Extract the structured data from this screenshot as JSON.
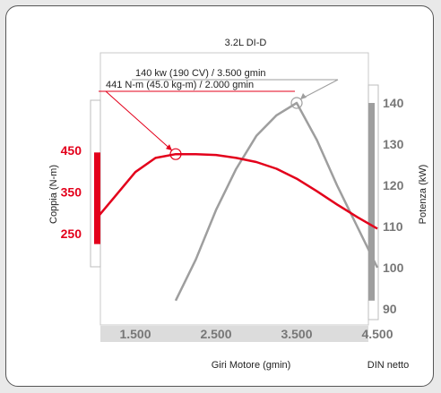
{
  "colors": {
    "torque": "#e3001b",
    "power": "#9e9e9e",
    "axis_text": "#777777",
    "text": "#222222"
  },
  "chart_data": {
    "type": "line",
    "title": "3.2L DI-D",
    "xlabel": "Giri Motore (gmin)",
    "xlabel_right": "DIN netto",
    "xlim": [
      1000,
      5000
    ],
    "x_ticks": [
      1500,
      2500,
      3500,
      4500
    ],
    "x_tick_labels": [
      "1.500",
      "2.500",
      "3.500",
      "4.500"
    ],
    "y_left": {
      "label": "Coppia (N-m)",
      "ticks": [
        250,
        350,
        450
      ],
      "tick_labels": [
        "250",
        "350",
        "450"
      ],
      "range_bar": [
        225,
        445
      ]
    },
    "y_right": {
      "label": "Potenza (kW)",
      "ticks": [
        90,
        100,
        110,
        120,
        130,
        140
      ],
      "tick_labels": [
        "90",
        "100",
        "110",
        "120",
        "130",
        "140"
      ],
      "range_bar": [
        92,
        140
      ]
    },
    "series": [
      {
        "name": "",
        "axis": "left",
        "points": [
          [
            1000,
            282
          ],
          [
            1250,
            340
          ],
          [
            1500,
            398
          ],
          [
            1750,
            432
          ],
          [
            2000,
            441
          ],
          [
            2250,
            441
          ],
          [
            2500,
            439
          ],
          [
            2750,
            432
          ],
          [
            3000,
            422
          ],
          [
            3250,
            406
          ],
          [
            3500,
            382
          ],
          [
            3750,
            352
          ],
          [
            4000,
            320
          ],
          [
            4250,
            290
          ],
          [
            4500,
            262
          ]
        ]
      },
      {
        "name": "",
        "axis": "right",
        "points": [
          [
            2000,
            92
          ],
          [
            2250,
            102
          ],
          [
            2500,
            114
          ],
          [
            2750,
            124
          ],
          [
            3000,
            132
          ],
          [
            3250,
            137
          ],
          [
            3500,
            140
          ],
          [
            3750,
            131
          ],
          [
            4000,
            120
          ],
          [
            4250,
            110
          ],
          [
            4500,
            100
          ]
        ]
      }
    ],
    "annotations": [
      {
        "text": "441 N-m (45.0 kg-m) / 2.000 gmin",
        "x": 2000,
        "y": 441,
        "axis": "left"
      },
      {
        "text": "140 kw (190 CV) / 3.500 gmin",
        "x": 3500,
        "y": 140,
        "axis": "right"
      }
    ]
  }
}
